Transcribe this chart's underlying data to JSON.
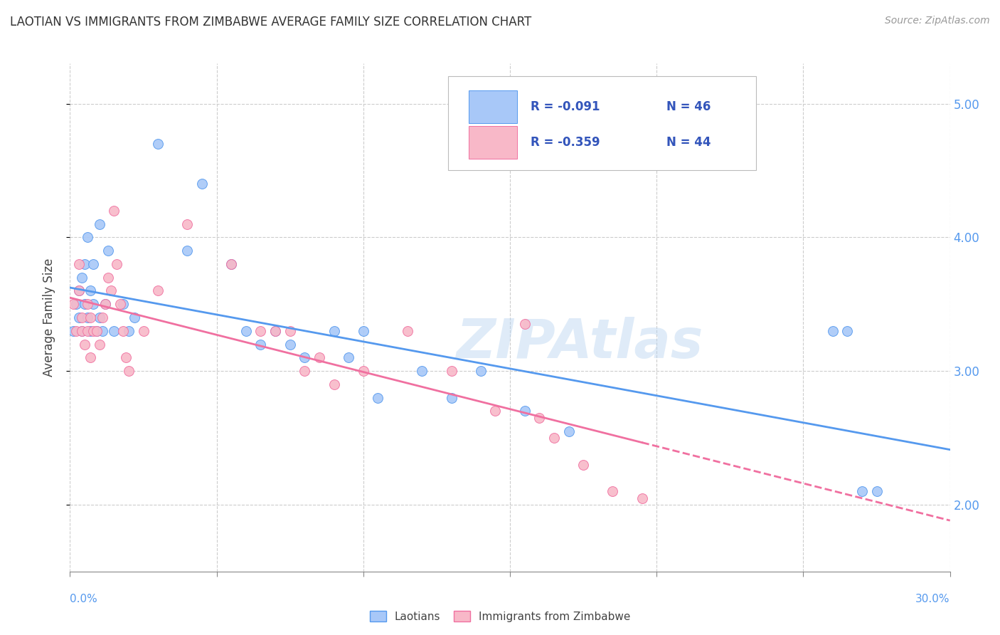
{
  "title": "LAOTIAN VS IMMIGRANTS FROM ZIMBABWE AVERAGE FAMILY SIZE CORRELATION CHART",
  "source": "Source: ZipAtlas.com",
  "ylabel": "Average Family Size",
  "xmin": 0.0,
  "xmax": 0.3,
  "ymin": 1.5,
  "ymax": 5.3,
  "yticks": [
    2.0,
    3.0,
    4.0,
    5.0
  ],
  "xticks": [
    0.0,
    0.05,
    0.1,
    0.15,
    0.2,
    0.25,
    0.3
  ],
  "legend_r1": "R = -0.091",
  "legend_n1": "N = 46",
  "legend_r2": "R = -0.359",
  "legend_n2": "N = 44",
  "color_laotian": "#a8c8f8",
  "color_zimbabwe": "#f8b8c8",
  "color_line_laotian": "#5599ee",
  "color_line_zimbabwe": "#f070a0",
  "color_grid": "#cccccc",
  "watermark": "ZIPAtlas",
  "laotian_x": [
    0.001,
    0.002,
    0.003,
    0.003,
    0.004,
    0.004,
    0.005,
    0.005,
    0.006,
    0.006,
    0.007,
    0.007,
    0.008,
    0.008,
    0.009,
    0.01,
    0.01,
    0.011,
    0.012,
    0.013,
    0.015,
    0.018,
    0.02,
    0.022,
    0.03,
    0.04,
    0.045,
    0.055,
    0.06,
    0.065,
    0.07,
    0.075,
    0.08,
    0.09,
    0.095,
    0.1,
    0.105,
    0.12,
    0.13,
    0.14,
    0.155,
    0.17,
    0.26,
    0.265,
    0.27,
    0.275
  ],
  "laotian_y": [
    3.3,
    3.5,
    3.4,
    3.6,
    3.3,
    3.7,
    3.5,
    3.8,
    3.4,
    4.0,
    3.3,
    3.6,
    3.5,
    3.8,
    3.3,
    3.4,
    4.1,
    3.3,
    3.5,
    3.9,
    3.3,
    3.5,
    3.3,
    3.4,
    4.7,
    3.9,
    4.4,
    3.8,
    3.3,
    3.2,
    3.3,
    3.2,
    3.1,
    3.3,
    3.1,
    3.3,
    2.8,
    3.0,
    2.8,
    3.0,
    2.7,
    2.55,
    3.3,
    3.3,
    2.1,
    2.1
  ],
  "zimbabwe_x": [
    0.001,
    0.002,
    0.003,
    0.003,
    0.004,
    0.004,
    0.005,
    0.006,
    0.006,
    0.007,
    0.007,
    0.008,
    0.009,
    0.01,
    0.011,
    0.012,
    0.013,
    0.014,
    0.015,
    0.016,
    0.017,
    0.018,
    0.019,
    0.02,
    0.025,
    0.03,
    0.04,
    0.055,
    0.065,
    0.07,
    0.075,
    0.08,
    0.085,
    0.09,
    0.1,
    0.115,
    0.13,
    0.145,
    0.155,
    0.16,
    0.165,
    0.175,
    0.185,
    0.195
  ],
  "zimbabwe_y": [
    3.5,
    3.3,
    3.6,
    3.8,
    3.4,
    3.3,
    3.2,
    3.3,
    3.5,
    3.1,
    3.4,
    3.3,
    3.3,
    3.2,
    3.4,
    3.5,
    3.7,
    3.6,
    4.2,
    3.8,
    3.5,
    3.3,
    3.1,
    3.0,
    3.3,
    3.6,
    4.1,
    3.8,
    3.3,
    3.3,
    3.3,
    3.0,
    3.1,
    2.9,
    3.0,
    3.3,
    3.0,
    2.7,
    3.35,
    2.65,
    2.5,
    2.3,
    2.1,
    2.05
  ],
  "trend_laotian_x0": 0.0,
  "trend_laotian_x1": 0.3,
  "trend_zimbabwe_x0": 0.0,
  "trend_zimbabwe_solid_end": 0.195,
  "trend_zimbabwe_dash_end": 0.3
}
